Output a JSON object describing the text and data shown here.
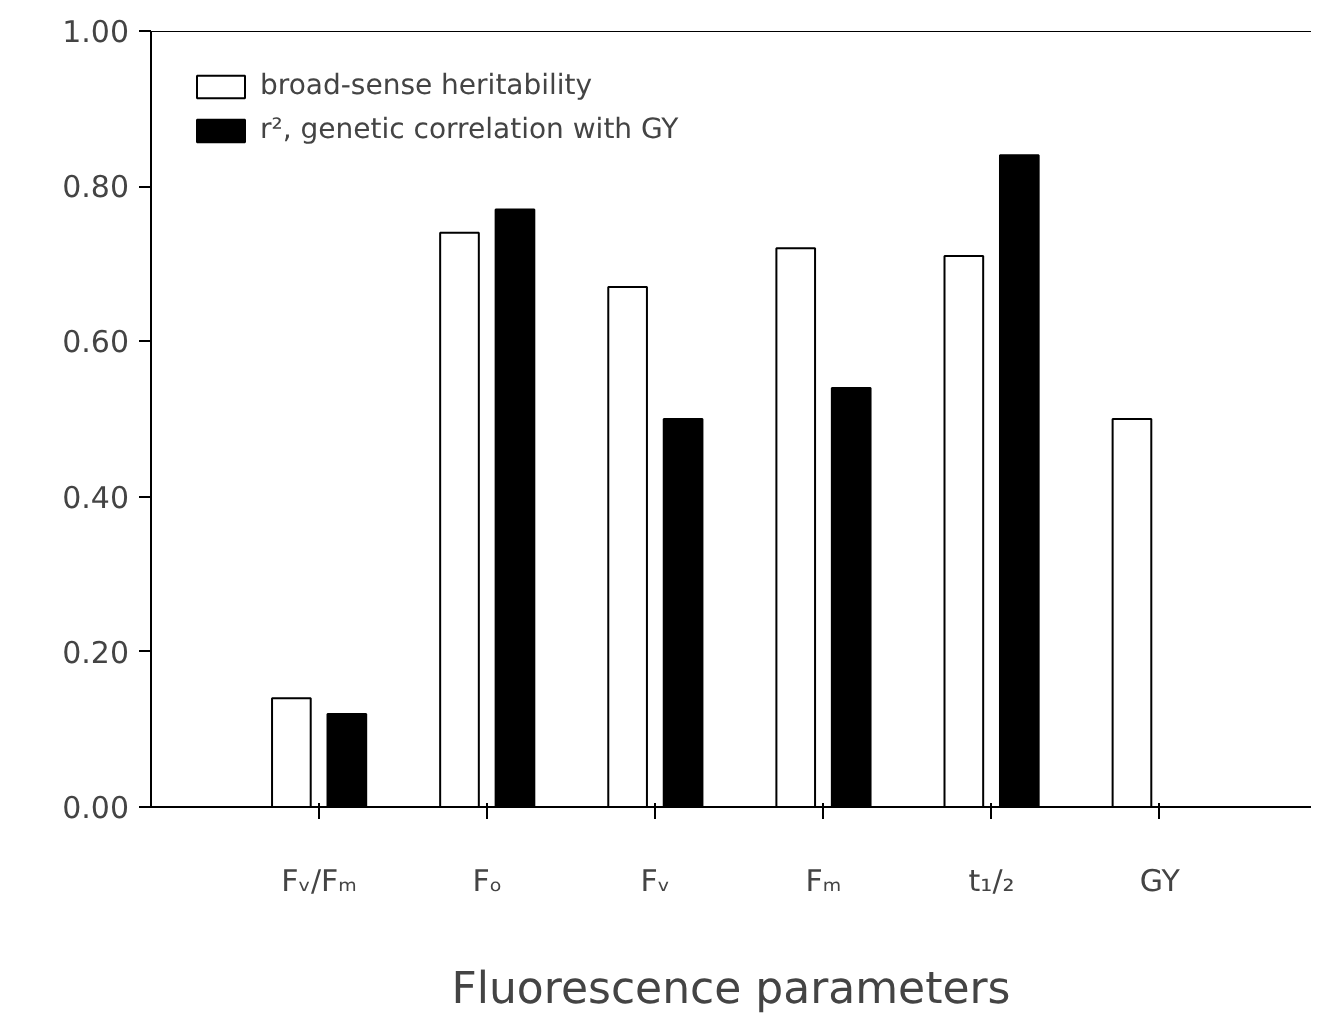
{
  "chart_data": {
    "type": "bar",
    "xlabel": "Fluorescence parameters",
    "categories": [
      "Fᵥ/Fₘ",
      "Fₒ",
      "Fᵥ",
      "Fₘ",
      "t₁/₂",
      "GY"
    ],
    "series": [
      {
        "name": "broad-sense heritability",
        "color": "#ffffff",
        "values": [
          0.14,
          0.74,
          0.67,
          0.72,
          0.71,
          0.5
        ]
      },
      {
        "name": "r², genetic correlation with GY",
        "color": "#000000",
        "values": [
          0.12,
          0.77,
          0.5,
          0.54,
          0.84,
          null
        ]
      }
    ],
    "ylim": [
      0,
      1.0
    ],
    "yticks": [
      {
        "value": 0,
        "label": "0.00"
      },
      {
        "value": 0.2,
        "label": "0.20"
      },
      {
        "value": 0.4,
        "label": "0.40"
      },
      {
        "value": 0.6,
        "label": "0.60"
      },
      {
        "value": 0.8,
        "label": "0.80"
      },
      {
        "value": 1.0,
        "label": "1.00"
      }
    ],
    "grid": false,
    "legend": "top left"
  }
}
